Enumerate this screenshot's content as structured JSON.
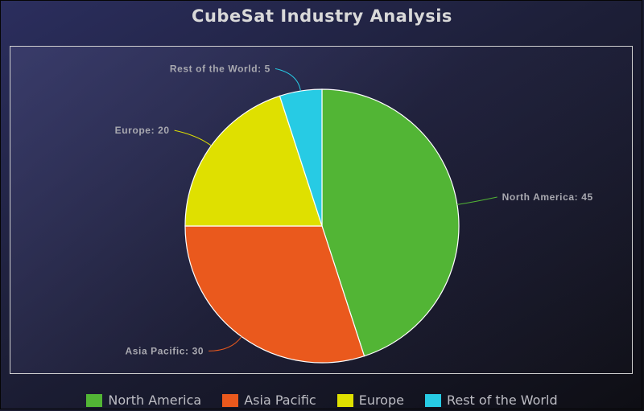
{
  "chart_data": {
    "type": "pie",
    "title": "CubeSat Industry Analysis",
    "slices": [
      {
        "label": "North America",
        "value": 45,
        "color": "#52b535",
        "display": "North America: 45"
      },
      {
        "label": "Asia Pacific",
        "value": 30,
        "color": "#ea591d",
        "display": "Asia Pacific: 30"
      },
      {
        "label": "Europe",
        "value": 20,
        "color": "#dfe000",
        "display": "Europe: 20"
      },
      {
        "label": "Rest of the World",
        "value": 5,
        "color": "#27cbe4",
        "display": "Rest of the World: 5"
      }
    ],
    "legend_position": "bottom"
  }
}
